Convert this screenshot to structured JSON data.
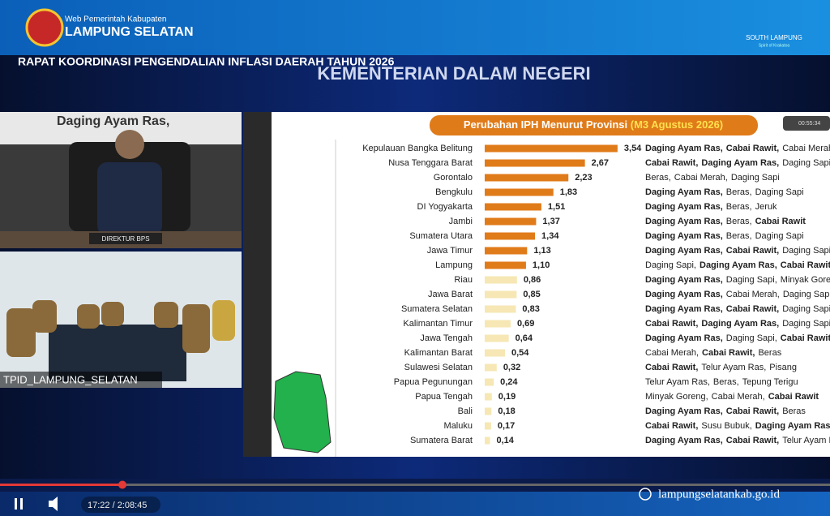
{
  "header": {
    "site_label": "Web Pemerintah Kabupaten",
    "site_name": "LAMPUNG SELATAN",
    "brand": "SOUTH LAMPUNG",
    "brand_tagline": "Spirit of Krakatoa"
  },
  "banner": {
    "event": "RAPAT KOORDINASI PENGENDALIAN INFLASI DAERAH TAHUN 2026",
    "ministry": "KEMENTERIAN DALAM NEGERI"
  },
  "video": {
    "slide_bg_text": "Daging Ayam Ras,",
    "nameplate": "DIREKTUR BPS",
    "room_label": "TPID_LAMPUNG_SELATAN",
    "timer": "00:55:34"
  },
  "chart_data": {
    "type": "bar",
    "orientation": "horizontal",
    "title": "Perubahan IPH Menurut Provinsi",
    "subtitle": "(M3 Agustus 2026)",
    "categories": [
      "Kepulauan Bangka Belitung",
      "Nusa Tenggara Barat",
      "Gorontalo",
      "Bengkulu",
      "DI Yogyakarta",
      "Jambi",
      "Sumatera Utara",
      "Jawa Timur",
      "Lampung",
      "Riau",
      "Jawa Barat",
      "Sumatera Selatan",
      "Kalimantan Timur",
      "Jawa Tengah",
      "Kalimantan Barat",
      "Sulawesi Selatan",
      "Papua Pegunungan",
      "Papua Tengah",
      "Bali",
      "Maluku",
      "Sumatera Barat"
    ],
    "values": [
      3.54,
      2.67,
      2.23,
      1.83,
      1.51,
      1.37,
      1.34,
      1.13,
      1.1,
      0.86,
      0.85,
      0.83,
      0.69,
      0.64,
      0.54,
      0.32,
      0.24,
      0.19,
      0.18,
      0.17,
      0.14
    ],
    "value_labels": [
      "3,54",
      "2,67",
      "2,23",
      "1,83",
      "1,51",
      "1,37",
      "1,34",
      "1,13",
      "1,10",
      "0,86",
      "0,85",
      "0,83",
      "0,69",
      "0,64",
      "0,54",
      "0,32",
      "0,24",
      "0,19",
      "0,18",
      "0,17",
      "0,14"
    ],
    "colors": [
      "#e07b1a",
      "#e07b1a",
      "#e07b1a",
      "#e07b1a",
      "#e07b1a",
      "#e07b1a",
      "#e07b1a",
      "#e07b1a",
      "#e07b1a",
      "#f6e7b4",
      "#f6e7b4",
      "#f6e7b4",
      "#f6e7b4",
      "#f6e7b4",
      "#f6e7b4",
      "#f6e7b4",
      "#f6e7b4",
      "#f6e7b4",
      "#f6e7b4",
      "#f6e7b4",
      "#f6e7b4"
    ],
    "commodities": [
      [
        {
          "text": "Daging Ayam Ras,",
          "bold": true
        },
        {
          "text": "Cabai Rawit,",
          "bold": true
        },
        {
          "text": "Cabai Merah",
          "bold": false
        }
      ],
      [
        {
          "text": "Cabai Rawit,",
          "bold": true
        },
        {
          "text": "Daging Ayam Ras,",
          "bold": true
        },
        {
          "text": "Daging Sapi",
          "bold": false
        }
      ],
      [
        {
          "text": "Beras,",
          "bold": false
        },
        {
          "text": "Cabai Merah,",
          "bold": false
        },
        {
          "text": "Daging Sapi",
          "bold": false
        }
      ],
      [
        {
          "text": "Daging Ayam Ras,",
          "bold": true
        },
        {
          "text": "Beras,",
          "bold": false
        },
        {
          "text": "Daging Sapi",
          "bold": false
        }
      ],
      [
        {
          "text": "Daging Ayam Ras,",
          "bold": true
        },
        {
          "text": "Beras,",
          "bold": false
        },
        {
          "text": "Jeruk",
          "bold": false
        }
      ],
      [
        {
          "text": "Daging Ayam Ras,",
          "bold": true
        },
        {
          "text": "Beras,",
          "bold": false
        },
        {
          "text": "Cabai Rawit",
          "bold": true
        }
      ],
      [
        {
          "text": "Daging Ayam Ras,",
          "bold": true
        },
        {
          "text": "Beras,",
          "bold": false
        },
        {
          "text": "Daging Sapi",
          "bold": false
        }
      ],
      [
        {
          "text": "Daging Ayam Ras,",
          "bold": true
        },
        {
          "text": "Cabai Rawit,",
          "bold": true
        },
        {
          "text": "Daging Sapi",
          "bold": false
        }
      ],
      [
        {
          "text": "Daging Sapi,",
          "bold": false
        },
        {
          "text": "Daging Ayam Ras,",
          "bold": true
        },
        {
          "text": "Cabai Rawit",
          "bold": true
        }
      ],
      [
        {
          "text": "Daging Ayam Ras,",
          "bold": true
        },
        {
          "text": "Daging Sapi,",
          "bold": false
        },
        {
          "text": "Minyak Goreng",
          "bold": false
        }
      ],
      [
        {
          "text": "Daging Ayam Ras,",
          "bold": true
        },
        {
          "text": "Cabai Merah,",
          "bold": false
        },
        {
          "text": "Daging Sapi",
          "bold": false
        }
      ],
      [
        {
          "text": "Daging Ayam Ras,",
          "bold": true
        },
        {
          "text": "Cabai Rawit,",
          "bold": true
        },
        {
          "text": "Daging Sapi",
          "bold": false
        }
      ],
      [
        {
          "text": "Cabai Rawit,",
          "bold": true
        },
        {
          "text": "Daging Ayam Ras,",
          "bold": true
        },
        {
          "text": "Daging Sapi",
          "bold": false
        }
      ],
      [
        {
          "text": "Daging Ayam Ras,",
          "bold": true
        },
        {
          "text": "Daging Sapi,",
          "bold": false
        },
        {
          "text": "Cabai Rawit",
          "bold": true
        }
      ],
      [
        {
          "text": "Cabai Merah,",
          "bold": false
        },
        {
          "text": "Cabai Rawit,",
          "bold": true
        },
        {
          "text": "Beras",
          "bold": false
        }
      ],
      [
        {
          "text": "Cabai Rawit,",
          "bold": true
        },
        {
          "text": "Telur Ayam Ras,",
          "bold": false
        },
        {
          "text": "Pisang",
          "bold": false
        }
      ],
      [
        {
          "text": "Telur Ayam Ras,",
          "bold": false
        },
        {
          "text": "Beras,",
          "bold": false
        },
        {
          "text": "Tepung Terigu",
          "bold": false
        }
      ],
      [
        {
          "text": "Minyak Goreng,",
          "bold": false
        },
        {
          "text": "Cabai Merah,",
          "bold": false
        },
        {
          "text": "Cabai Rawit",
          "bold": true
        }
      ],
      [
        {
          "text": "Daging Ayam Ras,",
          "bold": true
        },
        {
          "text": "Cabai Rawit,",
          "bold": true
        },
        {
          "text": "Beras",
          "bold": false
        }
      ],
      [
        {
          "text": "Cabai Rawit,",
          "bold": true
        },
        {
          "text": "Susu Bubuk,",
          "bold": false
        },
        {
          "text": "Daging Ayam Ras",
          "bold": true
        }
      ],
      [
        {
          "text": "Daging Ayam Ras,",
          "bold": true
        },
        {
          "text": "Cabai Rawit,",
          "bold": true
        },
        {
          "text": "Telur Ayam Ras",
          "bold": false
        }
      ]
    ]
  },
  "player": {
    "time": "17:22 / 2:08:45",
    "website": "lampungselatankab.go.id"
  }
}
